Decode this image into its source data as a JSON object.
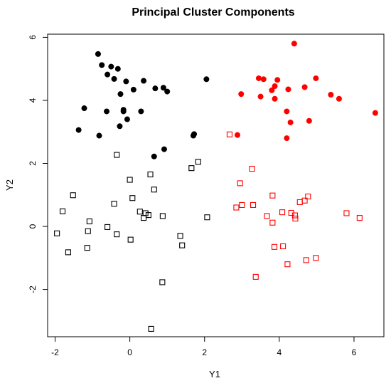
{
  "chart_data": {
    "type": "scatter",
    "title": "Principal Cluster Components",
    "xlabel": "Y1",
    "ylabel": "Y2",
    "xlim": [
      -2.2,
      6.8
    ],
    "ylim": [
      -3.5,
      6.1
    ],
    "xticks": [
      -2,
      0,
      2,
      4,
      6
    ],
    "yticks": [
      -2,
      0,
      2,
      4,
      6
    ],
    "tick_labels_x": [
      "-2",
      "0",
      "2",
      "4",
      "6"
    ],
    "tick_labels_y": [
      "-2",
      "0",
      "2",
      "4",
      "6"
    ],
    "series": [
      {
        "marker": "filled-circle",
        "color": "#000000",
        "points": [
          [
            -0.85,
            5.47
          ],
          [
            -0.75,
            5.12
          ],
          [
            -0.6,
            4.82
          ],
          [
            -0.5,
            5.07
          ],
          [
            -0.32,
            5.0
          ],
          [
            -0.42,
            4.68
          ],
          [
            -0.1,
            4.6
          ],
          [
            0.1,
            4.34
          ],
          [
            0.37,
            4.62
          ],
          [
            0.68,
            4.38
          ],
          [
            0.9,
            4.4
          ],
          [
            1.0,
            4.28
          ],
          [
            2.05,
            4.67
          ],
          [
            -0.25,
            4.2
          ],
          [
            -1.22,
            3.75
          ],
          [
            -0.62,
            3.65
          ],
          [
            -0.17,
            3.7
          ],
          [
            -0.17,
            3.65
          ],
          [
            0.3,
            3.65
          ],
          [
            -0.07,
            3.4
          ],
          [
            -0.27,
            3.18
          ],
          [
            -1.37,
            3.06
          ],
          [
            -0.82,
            2.88
          ],
          [
            1.7,
            2.88
          ],
          [
            1.72,
            2.93
          ],
          [
            0.92,
            2.45
          ],
          [
            0.65,
            2.22
          ]
        ]
      },
      {
        "marker": "open-square",
        "color": "#000000",
        "points": [
          [
            -0.35,
            2.27
          ],
          [
            0.55,
            1.65
          ],
          [
            0.0,
            1.48
          ],
          [
            -1.52,
            0.99
          ],
          [
            0.65,
            1.17
          ],
          [
            0.07,
            0.9
          ],
          [
            -0.42,
            0.72
          ],
          [
            -1.8,
            0.48
          ],
          [
            0.27,
            0.47
          ],
          [
            0.42,
            0.42
          ],
          [
            0.5,
            0.36
          ],
          [
            0.37,
            0.27
          ],
          [
            0.88,
            0.33
          ],
          [
            2.07,
            0.29
          ],
          [
            1.65,
            1.85
          ],
          [
            1.83,
            2.05
          ],
          [
            -1.08,
            0.16
          ],
          [
            -0.6,
            -0.02
          ],
          [
            -1.12,
            -0.15
          ],
          [
            -0.35,
            -0.25
          ],
          [
            -1.95,
            -0.22
          ],
          [
            1.35,
            -0.3
          ],
          [
            1.4,
            -0.6
          ],
          [
            0.02,
            -0.42
          ],
          [
            -1.14,
            -0.68
          ],
          [
            -1.65,
            -0.82
          ],
          [
            0.87,
            -1.77
          ],
          [
            0.57,
            -3.25
          ]
        ]
      },
      {
        "marker": "filled-circle",
        "color": "#ff0000",
        "points": [
          [
            4.4,
            5.8
          ],
          [
            3.45,
            4.7
          ],
          [
            3.58,
            4.67
          ],
          [
            3.95,
            4.65
          ],
          [
            4.98,
            4.7
          ],
          [
            3.88,
            4.45
          ],
          [
            4.68,
            4.42
          ],
          [
            4.24,
            4.35
          ],
          [
            3.8,
            4.32
          ],
          [
            5.38,
            4.18
          ],
          [
            2.98,
            4.2
          ],
          [
            3.5,
            4.12
          ],
          [
            3.88,
            4.05
          ],
          [
            5.6,
            4.05
          ],
          [
            6.57,
            3.6
          ],
          [
            4.2,
            3.65
          ],
          [
            4.3,
            3.3
          ],
          [
            4.8,
            3.35
          ],
          [
            2.88,
            2.9
          ],
          [
            4.2,
            2.8
          ]
        ]
      },
      {
        "marker": "open-square",
        "color": "#ff0000",
        "points": [
          [
            2.67,
            2.92
          ],
          [
            3.27,
            1.83
          ],
          [
            2.95,
            1.37
          ],
          [
            3.82,
            0.98
          ],
          [
            4.77,
            0.95
          ],
          [
            4.68,
            0.82
          ],
          [
            4.55,
            0.77
          ],
          [
            3.0,
            0.68
          ],
          [
            3.3,
            0.68
          ],
          [
            2.85,
            0.6
          ],
          [
            4.08,
            0.45
          ],
          [
            4.32,
            0.43
          ],
          [
            4.42,
            0.35
          ],
          [
            3.67,
            0.33
          ],
          [
            4.43,
            0.25
          ],
          [
            5.8,
            0.42
          ],
          [
            6.15,
            0.27
          ],
          [
            3.82,
            0.12
          ],
          [
            3.87,
            -0.65
          ],
          [
            4.1,
            -0.63
          ],
          [
            4.98,
            -1.0
          ],
          [
            4.72,
            -1.07
          ],
          [
            4.22,
            -1.2
          ],
          [
            3.37,
            -1.6
          ]
        ]
      }
    ]
  }
}
